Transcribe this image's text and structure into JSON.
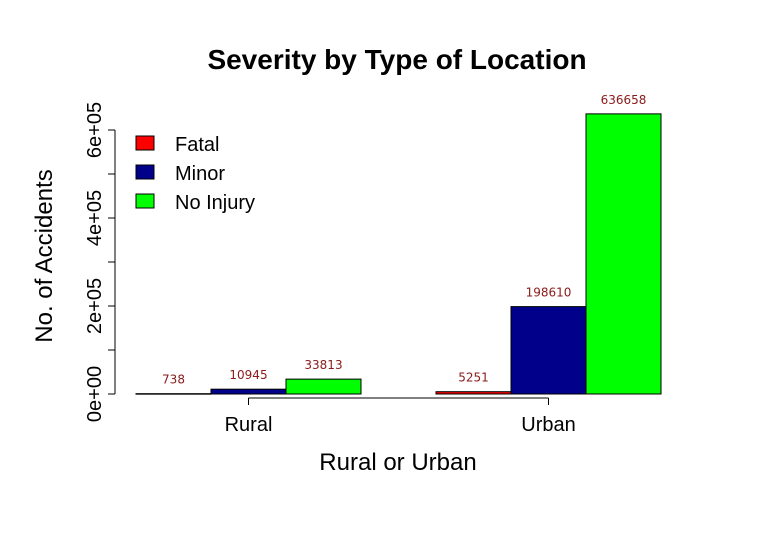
{
  "chart_data": {
    "type": "bar",
    "title": "Severity by Type of Location",
    "xlabel": "Rural or Urban",
    "ylabel": "No. of Accidents",
    "categories": [
      "Rural",
      "Urban"
    ],
    "series": [
      {
        "name": "Fatal",
        "color": "#ff0000",
        "values": [
          738,
          5251
        ]
      },
      {
        "name": "Minor",
        "color": "#00008b",
        "values": [
          10945,
          198610
        ]
      },
      {
        "name": "No Injury",
        "color": "#00ff00",
        "values": [
          33813,
          636658
        ]
      }
    ],
    "data_labels": [
      [
        "738",
        "5251"
      ],
      [
        "10945",
        "198610"
      ],
      [
        "33813",
        "636658"
      ]
    ],
    "yticks": [
      0,
      200000,
      400000,
      600000
    ],
    "ytick_labels": [
      "0e+00",
      "2e+05",
      "4e+05",
      "6e+05"
    ],
    "ylim": [
      0,
      650000
    ],
    "legend_position": "top-left",
    "grid": false
  }
}
